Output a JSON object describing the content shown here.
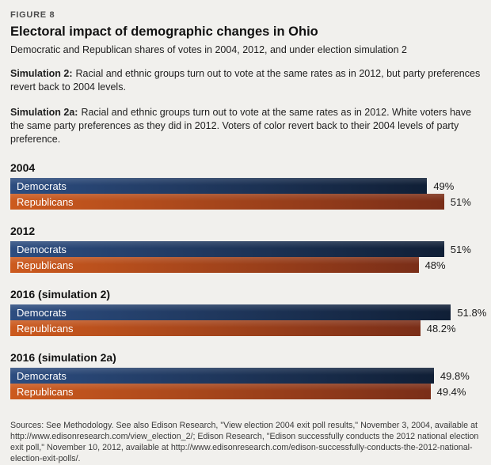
{
  "figure_label": "FIGURE 8",
  "title": "Electoral impact of demographic changes in Ohio",
  "subtitle": "Democratic and Republican shares of votes in 2004, 2012, and under election simulation 2",
  "notes": [
    {
      "lead": "Simulation 2:",
      "text": "Racial and ethnic groups turn out to vote at the same rates as in 2012, but party preferences revert back to 2004 levels."
    },
    {
      "lead": "Simulation 2a:",
      "text": "Racial and ethnic groups turn out to vote at the same rates as in 2012. White voters have the same party preferences as they did in 2012. Voters of color revert back to their 2004 levels of party preference."
    }
  ],
  "chart_data": {
    "type": "bar",
    "orientation": "horizontal",
    "title": "Electoral impact of demographic changes in Ohio",
    "subtitle": "Democratic and Republican shares of votes in 2004, 2012, and under election simulation 2",
    "categories": [
      "2004",
      "2012",
      "2016 (simulation 2)",
      "2016 (simulation 2a)"
    ],
    "series": [
      {
        "name": "Democrats",
        "values": [
          49,
          51,
          51.8,
          49.8
        ],
        "value_labels": [
          "49%",
          "51%",
          "51.8%",
          "49.8%"
        ]
      },
      {
        "name": "Republicans",
        "values": [
          51,
          48,
          48.2,
          49.4
        ],
        "value_labels": [
          "51%",
          "48%",
          "48.2%",
          "49.4%"
        ]
      }
    ],
    "xlim": [
      0,
      55.3
    ],
    "grid": false,
    "legend": "series-names-inside-bars",
    "value_labels_position": "right-of-bar"
  },
  "colors": {
    "background": "#f1f0ed",
    "dem_gradient_start": "#2d4d80",
    "dem_gradient_end": "#101f36",
    "rep_gradient_start": "#cc5a1e",
    "rep_gradient_end": "#7a2e18",
    "bar_label_text": "#ffffff",
    "value_text": "#1a1a1a"
  },
  "footer": "Sources: See Methodology. See also Edison Research, \"View election 2004 exit poll results,\" November 3, 2004, available at http://www.edisonresearch.com/view_election_2/; Edison Research, \"Edison successfully conducts the 2012 national election exit poll,\" November 10, 2012, available at http://www.edisonresearch.com/edison-successfully-conducts-the-2012-national-election-exit-polls/."
}
